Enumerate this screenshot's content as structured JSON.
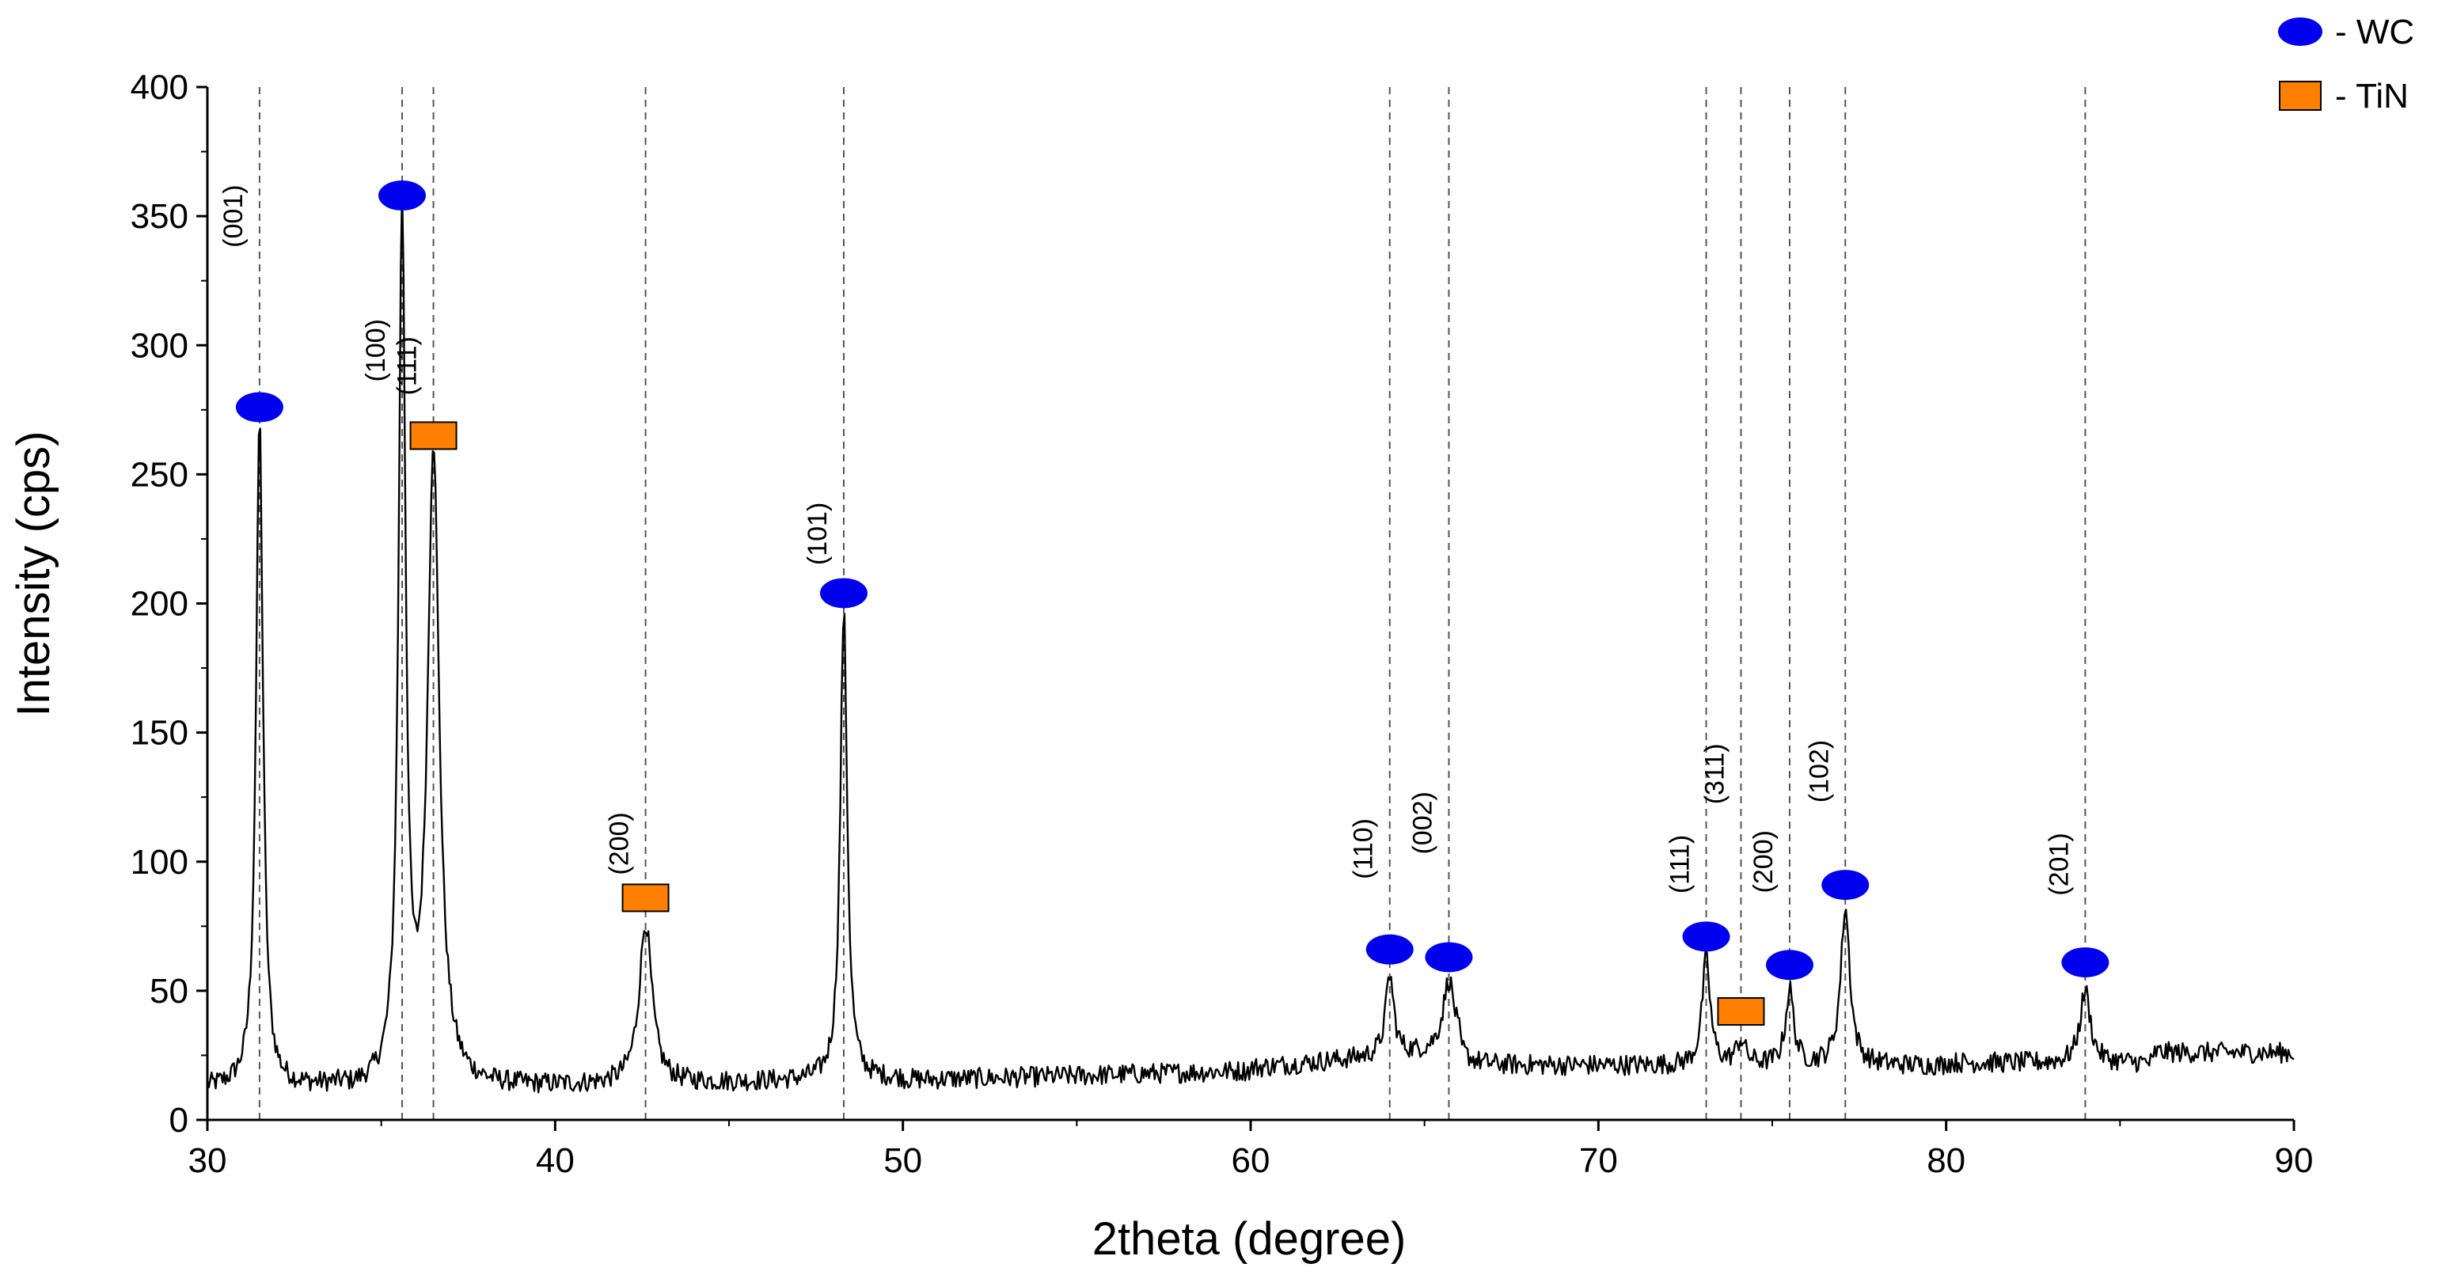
{
  "chart_data": {
    "type": "line",
    "title": "",
    "xlabel": "2theta (degree)",
    "ylabel": "Intensity (cps)",
    "xlim": [
      30,
      90
    ],
    "ylim": [
      0,
      400
    ],
    "xticks": [
      30,
      40,
      50,
      60,
      70,
      80,
      90
    ],
    "yticks": [
      0,
      50,
      100,
      150,
      200,
      250,
      300,
      350,
      400
    ],
    "grid": false,
    "legend_position": "top-right",
    "legend": [
      {
        "label": "- WC",
        "marker": "ellipse",
        "color": "#0000ee"
      },
      {
        "label": "- TiN",
        "marker": "rectangle",
        "color": "#ff8000"
      }
    ],
    "background_level": 18,
    "peaks": [
      {
        "x": 31.5,
        "y": 272,
        "w": 0.12
      },
      {
        "x": 35.6,
        "y": 350,
        "w": 0.12
      },
      {
        "x": 36.5,
        "y": 258,
        "w": 0.2
      },
      {
        "x": 42.6,
        "y": 76,
        "w": 0.22
      },
      {
        "x": 48.3,
        "y": 197,
        "w": 0.12
      },
      {
        "x": 64.0,
        "y": 56,
        "w": 0.14
      },
      {
        "x": 65.7,
        "y": 54,
        "w": 0.2
      },
      {
        "x": 73.1,
        "y": 62,
        "w": 0.14
      },
      {
        "x": 74.1,
        "y": 30,
        "w": 0.16
      },
      {
        "x": 75.5,
        "y": 50,
        "w": 0.14
      },
      {
        "x": 77.1,
        "y": 82,
        "w": 0.16
      },
      {
        "x": 84.0,
        "y": 50,
        "w": 0.18
      }
    ],
    "reflections": [
      {
        "x": 31.5,
        "hkl": "(001)",
        "phase": "WC",
        "marker_y": 276,
        "label_y": 350
      },
      {
        "x": 35.6,
        "hkl": "(100)",
        "phase": "WC",
        "marker_y": 358,
        "label_y": 298
      },
      {
        "x": 36.5,
        "hkl": "(111)",
        "phase": "TiN",
        "marker_y": 265,
        "label_y": 292
      },
      {
        "x": 42.6,
        "hkl": "(200)",
        "phase": "TiN",
        "marker_y": 86,
        "label_y": 107
      },
      {
        "x": 48.3,
        "hkl": "(101)",
        "phase": "WC",
        "marker_y": 204,
        "label_y": 227
      },
      {
        "x": 64.0,
        "hkl": "(110)",
        "phase": "WC",
        "marker_y": 66,
        "label_y": 105
      },
      {
        "x": 65.7,
        "hkl": "(002)",
        "phase": "WC",
        "marker_y": 63,
        "label_y": 115
      },
      {
        "x": 73.1,
        "hkl": "(111)",
        "phase": "WC",
        "marker_y": 71,
        "label_y": 99
      },
      {
        "x": 74.1,
        "hkl": "(311)",
        "phase": "TiN",
        "marker_y": 42,
        "label_y": 134
      },
      {
        "x": 75.5,
        "hkl": "(200)",
        "phase": "WC",
        "marker_y": 60,
        "label_y": 100
      },
      {
        "x": 77.1,
        "hkl": "(102)",
        "phase": "WC",
        "marker_y": 91,
        "label_y": 135
      },
      {
        "x": 84.0,
        "hkl": "(201)",
        "phase": "WC",
        "marker_y": 61,
        "label_y": 99
      }
    ],
    "colors": {
      "line": "#000000",
      "dashed": "#555555",
      "wc": "#0000ee",
      "tin": "#ff8000"
    }
  }
}
